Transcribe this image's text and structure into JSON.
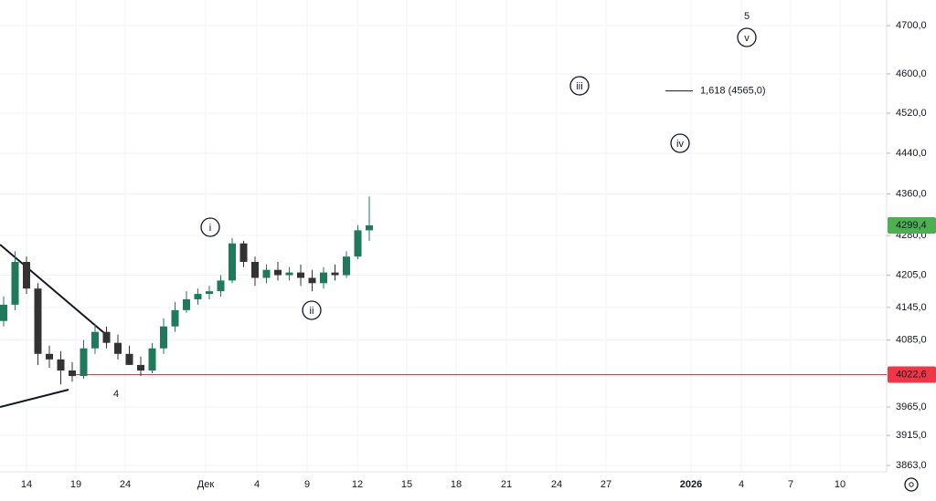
{
  "chart_data": {
    "type": "candlestick",
    "x_labels": [
      "14",
      "19",
      "24",
      "Дек",
      "4",
      "9",
      "12",
      "15",
      "18",
      "21",
      "24",
      "27",
      "2026",
      "4",
      "7",
      "10"
    ],
    "open": [
      4120,
      4150,
      4230,
      4180,
      4060,
      4050,
      4030,
      4020,
      4070,
      4100,
      4080,
      4060,
      4040,
      4030,
      4070,
      4110,
      4140,
      4160,
      4170,
      4175,
      4195,
      4265,
      4230,
      4200,
      4215,
      4205,
      4210,
      4200,
      4190,
      4210,
      4205,
      4240,
      4290
    ],
    "high": [
      4165,
      4250,
      4240,
      4190,
      4075,
      4065,
      4045,
      4085,
      4115,
      4110,
      4095,
      4075,
      4055,
      4080,
      4125,
      4155,
      4175,
      4180,
      4185,
      4205,
      4275,
      4270,
      4240,
      4225,
      4230,
      4220,
      4225,
      4215,
      4220,
      4225,
      4250,
      4300,
      4355
    ],
    "low": [
      4110,
      4140,
      4170,
      4040,
      4035,
      4005,
      4010,
      4015,
      4060,
      4070,
      4050,
      4040,
      4020,
      4025,
      4060,
      4100,
      4135,
      4150,
      4160,
      4165,
      4190,
      4220,
      4185,
      4190,
      4195,
      4195,
      4185,
      4175,
      4180,
      4195,
      4200,
      4235,
      4270
    ],
    "close": [
      4150,
      4230,
      4180,
      4060,
      4050,
      4030,
      4020,
      4070,
      4100,
      4080,
      4060,
      4040,
      4030,
      4070,
      4110,
      4140,
      4160,
      4170,
      4175,
      4195,
      4265,
      4230,
      4200,
      4215,
      4205,
      4210,
      4200,
      4190,
      4210,
      4205,
      4240,
      4290,
      4299.4
    ],
    "up_color": "#1e7a5a",
    "down_color": "#333333",
    "ylim": [
      3852,
      4754
    ],
    "log": true,
    "grid": true,
    "yticks": [
      {
        "value": 4700,
        "label": "4700,0"
      },
      {
        "value": 4600,
        "label": "4600,0"
      },
      {
        "value": 4520,
        "label": "4520,0"
      },
      {
        "value": 4440,
        "label": "4440,0"
      },
      {
        "value": 4360,
        "label": "4360,0"
      },
      {
        "value": 4280,
        "label": "4280,0"
      },
      {
        "value": 4205,
        "label": "4205,0"
      },
      {
        "value": 4145,
        "label": "4145,0"
      },
      {
        "value": 4085,
        "label": "4085,0"
      },
      {
        "value": 3965,
        "label": "3965,0"
      },
      {
        "value": 3915,
        "label": "3915,0"
      },
      {
        "value": 3863,
        "label": "3863,0"
      }
    ],
    "last_price": {
      "value": 4299.4,
      "label": "4299,4",
      "color": "#4caf50"
    },
    "level": {
      "value": 4022.6,
      "label": "4022,6",
      "color": "#f23645"
    },
    "fib": {
      "value": 4565,
      "label": "1,618 (4565,0)"
    },
    "waves": [
      "i",
      "ii",
      "iii",
      "iv",
      "v",
      "4",
      "5"
    ]
  }
}
